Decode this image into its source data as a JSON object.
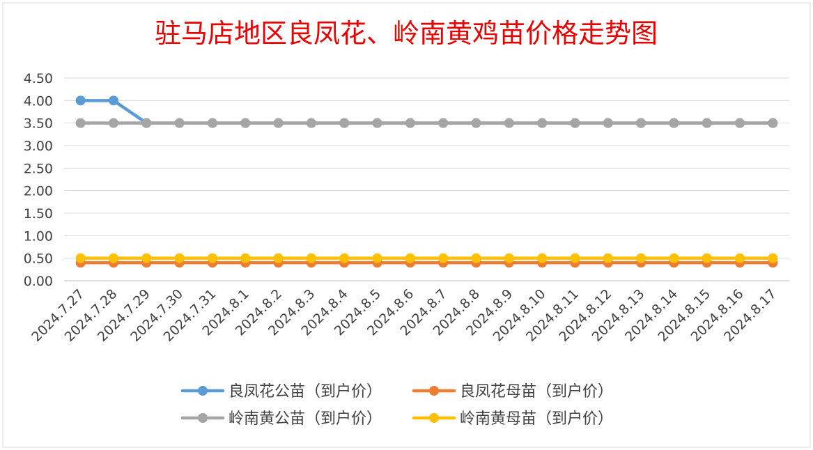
{
  "chart_data": {
    "type": "line",
    "title": "驻马店地区良凤花、岭南黄鸡苗价格走势图",
    "xlabel": "",
    "ylabel": "",
    "ylim": [
      0,
      4.5
    ],
    "yticks": [
      "0.00",
      "0.50",
      "1.00",
      "1.50",
      "2.00",
      "2.50",
      "3.00",
      "3.50",
      "4.00",
      "4.50"
    ],
    "grid": true,
    "legend_position": "bottom",
    "categories": [
      "2024.7.27",
      "2024.7.28",
      "2024.7.29",
      "2024.7.30",
      "2024.7.31",
      "2024.8.1",
      "2024.8.2",
      "2024.8.3",
      "2024.8.4",
      "2024.8.5",
      "2024.8.6",
      "2024.8.7",
      "2024.8.8",
      "2024.8.9",
      "2024.8.10",
      "2024.8.11",
      "2024.8.12",
      "2024.8.13",
      "2024.8.14",
      "2024.8.15",
      "2024.8.16",
      "2024.8.17"
    ],
    "series": [
      {
        "name": "良凤花公苗（到户价）",
        "color": "#5b9bd5",
        "values": [
          4.0,
          4.0,
          3.5,
          3.5,
          3.5,
          3.5,
          3.5,
          3.5,
          3.5,
          3.5,
          3.5,
          3.5,
          3.5,
          3.5,
          3.5,
          3.5,
          3.5,
          3.5,
          3.5,
          3.5,
          3.5,
          3.5
        ]
      },
      {
        "name": "良凤花母苗（到户价）",
        "color": "#ed7d31",
        "values": [
          0.4,
          0.4,
          0.4,
          0.4,
          0.4,
          0.4,
          0.4,
          0.4,
          0.4,
          0.4,
          0.4,
          0.4,
          0.4,
          0.4,
          0.4,
          0.4,
          0.4,
          0.4,
          0.4,
          0.4,
          0.4,
          0.4
        ]
      },
      {
        "name": "岭南黄公苗（到户价）",
        "color": "#a5a5a5",
        "values": [
          3.5,
          3.5,
          3.5,
          3.5,
          3.5,
          3.5,
          3.5,
          3.5,
          3.5,
          3.5,
          3.5,
          3.5,
          3.5,
          3.5,
          3.5,
          3.5,
          3.5,
          3.5,
          3.5,
          3.5,
          3.5,
          3.5
        ]
      },
      {
        "name": "岭南黄母苗（到户价）",
        "color": "#ffc000",
        "values": [
          0.5,
          0.5,
          0.5,
          0.5,
          0.5,
          0.5,
          0.5,
          0.5,
          0.5,
          0.5,
          0.5,
          0.5,
          0.5,
          0.5,
          0.5,
          0.5,
          0.5,
          0.5,
          0.5,
          0.5,
          0.5,
          0.5
        ]
      }
    ]
  }
}
